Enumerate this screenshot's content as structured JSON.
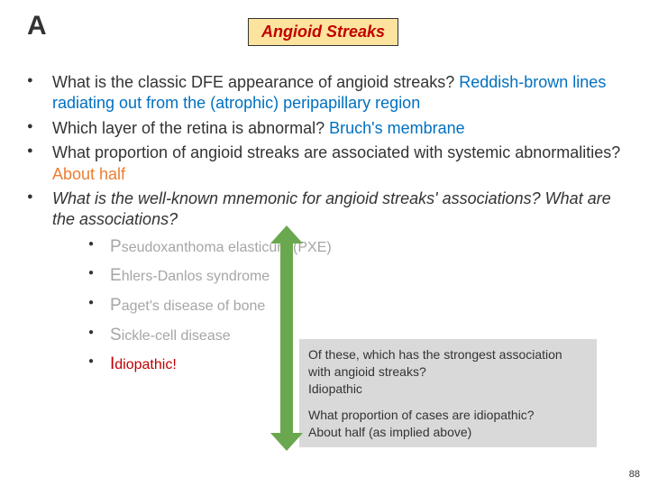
{
  "corner": "A",
  "title": "Angioid Streaks",
  "bullets": {
    "b1_q": "What is the classic DFE appearance of angioid streaks? ",
    "b1_a": "Reddish-brown lines radiating out from the (atrophic) peripapillary region",
    "b2_q": "Which layer of the retina is abnormal? ",
    "b2_a": "Bruch's membrane",
    "b3_q": "What proportion of angioid streaks are associated with systemic abnormalities? ",
    "b3_a": "About half",
    "b4_q": "What is the well-known mnemonic for angioid streaks' associations? What are the associations?"
  },
  "sub": {
    "s1_cap": "P",
    "s1_rest": "seudoxanthoma elasticum (PXE)",
    "s2_cap": "E",
    "s2_rest": "hlers-Danlos syndrome",
    "s3_cap": "P",
    "s3_rest": "aget's disease of bone",
    "s4_cap": "S",
    "s4_rest": "ickle-cell disease",
    "s5_cap": "I",
    "s5_rest": "diopathic!"
  },
  "side": {
    "q1": "Of these, which has the strongest association with angioid streaks?",
    "a1": "Idiopathic",
    "q2": "What proportion of cases are idiopathic?",
    "a2": "About half (as implied above)"
  },
  "page": "88"
}
